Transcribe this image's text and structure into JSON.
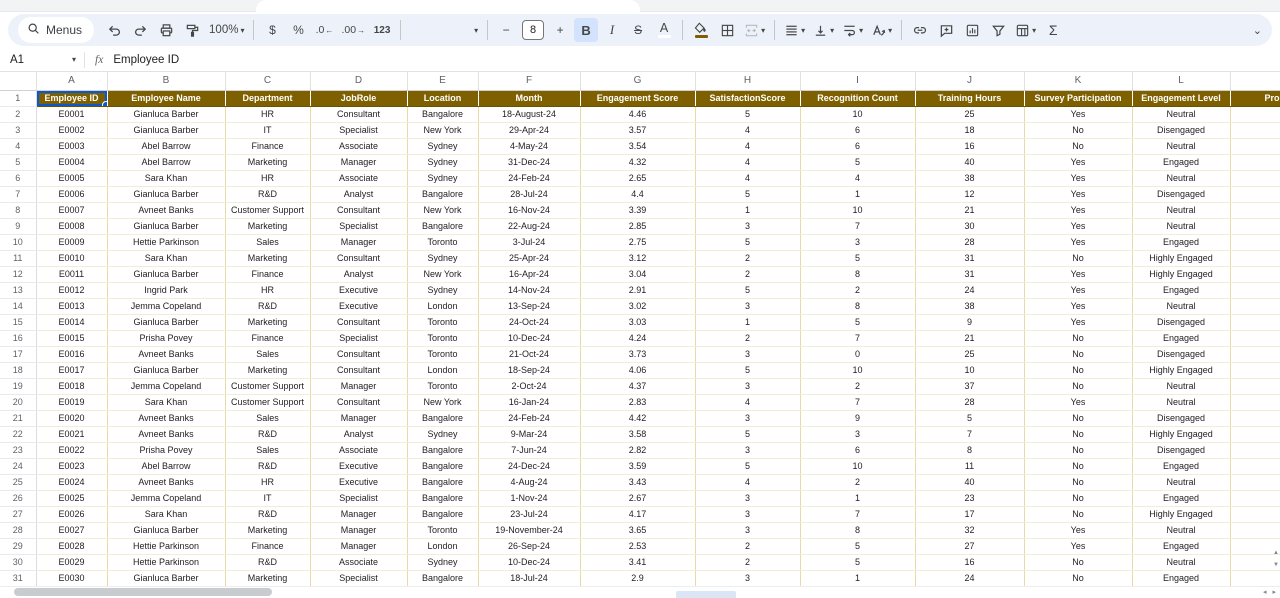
{
  "toolbar": {
    "menus_label": "Menus",
    "zoom_value": "100%",
    "currency_label": "$",
    "percent_label": "%",
    "decrease_decimal_label": ".0",
    "increase_decimal_label": ".00",
    "number_format_label": "123",
    "decrease_font_label": "−",
    "font_size_value": "8",
    "increase_font_label": "+",
    "bold_label": "B",
    "italic_label": "I",
    "strikethrough_label": "S",
    "text_color_label": "A",
    "functions_label": "Σ",
    "collapse_label": "⌄",
    "accent_fill_color": "#7f6000",
    "bold_active_bg": "#d3e3fd"
  },
  "formula_bar": {
    "name_box": "A1",
    "fx_label": "fx",
    "content": "Employee ID"
  },
  "sheet": {
    "selected_cell": "A1",
    "header_bg": "#7f6000",
    "selection_color": "#0b57d0",
    "column_letters": [
      "A",
      "B",
      "C",
      "D",
      "E",
      "F",
      "G",
      "H",
      "I",
      "J",
      "K",
      "L",
      ""
    ],
    "headers": [
      "Employee ID",
      "Employee Name",
      "Department",
      "JobRole",
      "Location",
      "Month",
      "Engagement Score",
      "SatisfactionScore",
      "Recognition Count",
      "Training Hours",
      "Survey Participation",
      "Engagement Level",
      "Pro"
    ],
    "rows": [
      [
        "E0001",
        "Gianluca Barber",
        "HR",
        "Consultant",
        "Bangalore",
        "18-August-24",
        "4.46",
        "5",
        "10",
        "25",
        "Yes",
        "Neutral"
      ],
      [
        "E0002",
        "Gianluca Barber",
        "IT",
        "Specialist",
        "New York",
        "29-Apr-24",
        "3.57",
        "4",
        "6",
        "18",
        "No",
        "Disengaged"
      ],
      [
        "E0003",
        "Abel Barrow",
        "Finance",
        "Associate",
        "Sydney",
        "4-May-24",
        "3.54",
        "4",
        "6",
        "16",
        "No",
        "Neutral"
      ],
      [
        "E0004",
        "Abel Barrow",
        "Marketing",
        "Manager",
        "Sydney",
        "31-Dec-24",
        "4.32",
        "4",
        "5",
        "40",
        "Yes",
        "Engaged"
      ],
      [
        "E0005",
        "Sara Khan",
        "HR",
        "Associate",
        "Sydney",
        "24-Feb-24",
        "2.65",
        "4",
        "4",
        "38",
        "Yes",
        "Neutral"
      ],
      [
        "E0006",
        "Gianluca Barber",
        "R&D",
        "Analyst",
        "Bangalore",
        "28-Jul-24",
        "4.4",
        "5",
        "1",
        "12",
        "Yes",
        "Disengaged"
      ],
      [
        "E0007",
        "Avneet Banks",
        "Customer Support",
        "Consultant",
        "New York",
        "16-Nov-24",
        "3.39",
        "1",
        "10",
        "21",
        "Yes",
        "Neutral"
      ],
      [
        "E0008",
        "Gianluca Barber",
        "Marketing",
        "Specialist",
        "Bangalore",
        "22-Aug-24",
        "2.85",
        "3",
        "7",
        "30",
        "Yes",
        "Neutral"
      ],
      [
        "E0009",
        "Hettie Parkinson",
        "Sales",
        "Manager",
        "Toronto",
        "3-Jul-24",
        "2.75",
        "5",
        "3",
        "28",
        "Yes",
        "Engaged"
      ],
      [
        "E0010",
        "Sara Khan",
        "Marketing",
        "Consultant",
        "Sydney",
        "25-Apr-24",
        "3.12",
        "2",
        "5",
        "31",
        "No",
        "Highly Engaged"
      ],
      [
        "E0011",
        "Gianluca Barber",
        "Finance",
        "Analyst",
        "New York",
        "16-Apr-24",
        "3.04",
        "2",
        "8",
        "31",
        "Yes",
        "Highly Engaged"
      ],
      [
        "E0012",
        "Ingrid Park",
        "HR",
        "Executive",
        "Sydney",
        "14-Nov-24",
        "2.91",
        "5",
        "2",
        "24",
        "Yes",
        "Engaged"
      ],
      [
        "E0013",
        "Jemma Copeland",
        "R&D",
        "Executive",
        "London",
        "13-Sep-24",
        "3.02",
        "3",
        "8",
        "38",
        "Yes",
        "Neutral"
      ],
      [
        "E0014",
        "Gianluca Barber",
        "Marketing",
        "Consultant",
        "Toronto",
        "24-Oct-24",
        "3.03",
        "1",
        "5",
        "9",
        "Yes",
        "Disengaged"
      ],
      [
        "E0015",
        "Prisha Povey",
        "Finance",
        "Specialist",
        "Toronto",
        "10-Dec-24",
        "4.24",
        "2",
        "7",
        "21",
        "No",
        "Engaged"
      ],
      [
        "E0016",
        "Avneet Banks",
        "Sales",
        "Consultant",
        "Toronto",
        "21-Oct-24",
        "3.73",
        "3",
        "0",
        "25",
        "No",
        "Disengaged"
      ],
      [
        "E0017",
        "Gianluca Barber",
        "Marketing",
        "Consultant",
        "London",
        "18-Sep-24",
        "4.06",
        "5",
        "10",
        "10",
        "No",
        "Highly Engaged"
      ],
      [
        "E0018",
        "Jemma Copeland",
        "Customer Support",
        "Manager",
        "Toronto",
        "2-Oct-24",
        "4.37",
        "3",
        "2",
        "37",
        "No",
        "Neutral"
      ],
      [
        "E0019",
        "Sara Khan",
        "Customer Support",
        "Consultant",
        "New York",
        "16-Jan-24",
        "2.83",
        "4",
        "7",
        "28",
        "Yes",
        "Neutral"
      ],
      [
        "E0020",
        "Avneet Banks",
        "Sales",
        "Manager",
        "Bangalore",
        "24-Feb-24",
        "4.42",
        "3",
        "9",
        "5",
        "No",
        "Disengaged"
      ],
      [
        "E0021",
        "Avneet Banks",
        "R&D",
        "Analyst",
        "Sydney",
        "9-Mar-24",
        "3.58",
        "5",
        "3",
        "7",
        "No",
        "Highly Engaged"
      ],
      [
        "E0022",
        "Prisha Povey",
        "Sales",
        "Associate",
        "Bangalore",
        "7-Jun-24",
        "2.82",
        "3",
        "6",
        "8",
        "No",
        "Disengaged"
      ],
      [
        "E0023",
        "Abel Barrow",
        "R&D",
        "Executive",
        "Bangalore",
        "24-Dec-24",
        "3.59",
        "5",
        "10",
        "11",
        "No",
        "Engaged"
      ],
      [
        "E0024",
        "Avneet Banks",
        "HR",
        "Executive",
        "Bangalore",
        "4-Aug-24",
        "3.43",
        "4",
        "2",
        "40",
        "No",
        "Neutral"
      ],
      [
        "E0025",
        "Jemma Copeland",
        "IT",
        "Specialist",
        "Bangalore",
        "1-Nov-24",
        "2.67",
        "3",
        "1",
        "23",
        "No",
        "Engaged"
      ],
      [
        "E0026",
        "Sara Khan",
        "R&D",
        "Manager",
        "Bangalore",
        "23-Jul-24",
        "4.17",
        "3",
        "7",
        "17",
        "No",
        "Highly Engaged"
      ],
      [
        "E0027",
        "Gianluca Barber",
        "Marketing",
        "Manager",
        "Toronto",
        "19-November-24",
        "3.65",
        "3",
        "8",
        "32",
        "Yes",
        "Neutral"
      ],
      [
        "E0028",
        "Hettie Parkinson",
        "Finance",
        "Manager",
        "London",
        "26-Sep-24",
        "2.53",
        "2",
        "5",
        "27",
        "Yes",
        "Engaged"
      ],
      [
        "E0029",
        "Hettie Parkinson",
        "R&D",
        "Associate",
        "Sydney",
        "10-Dec-24",
        "3.41",
        "2",
        "5",
        "16",
        "No",
        "Neutral"
      ],
      [
        "E0030",
        "Gianluca Barber",
        "Marketing",
        "Specialist",
        "Bangalore",
        "18-Jul-24",
        "2.9",
        "3",
        "1",
        "24",
        "No",
        "Engaged"
      ]
    ]
  },
  "scrollbars": {
    "horizontal_arrows": "◂ ▸",
    "vertical_up": "▲",
    "vertical_down": "▼"
  }
}
